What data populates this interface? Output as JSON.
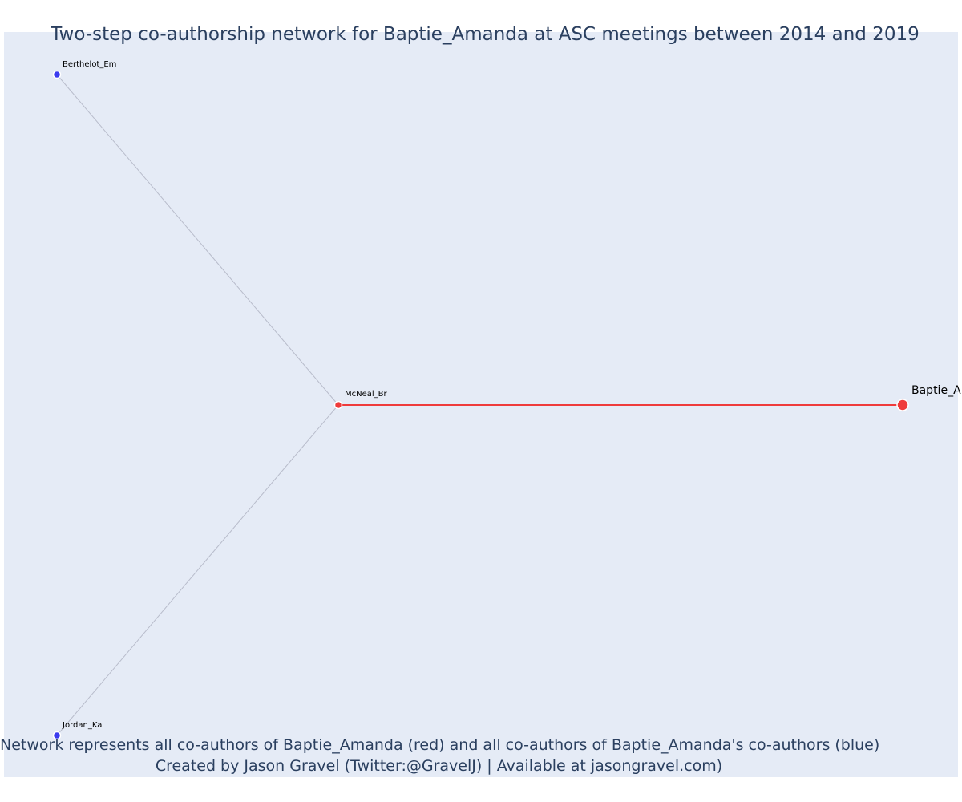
{
  "title": "Two-step co-authorship network for Baptie_Amanda at ASC meetings between 2014 and 2019",
  "caption": {
    "line1": "Network represents all co-authors of Baptie_Amanda (red) and all co-authors of Baptie_Amanda's co-authors (blue)",
    "line2": "Created by Jason Gravel (Twitter:@GravelJ) | Available at jasongravel.com)"
  },
  "colors": {
    "plot_background": "#e5ebf6",
    "title_text": "#2a3f5f",
    "coauthor_red": "#ef3b3b",
    "second_step_blue": "#3b3bef",
    "edge_red": "#ef3b3b",
    "edge_gray": "#b8bccb"
  },
  "network": {
    "nodes": [
      {
        "id": "Baptie_A",
        "label": "Baptie_A",
        "group": "focal"
      },
      {
        "id": "McNeal_Br",
        "label": "McNeal_Br",
        "group": "coauthor"
      },
      {
        "id": "Berthelot_Em",
        "label": "Berthelot_Em",
        "group": "second-step"
      },
      {
        "id": "Jordan_Ka",
        "label": "Jordan_Ka",
        "group": "second-step"
      }
    ],
    "edges": [
      {
        "source": "McNeal_Br",
        "target": "Baptie_A",
        "type": "direct"
      },
      {
        "source": "McNeal_Br",
        "target": "Berthelot_Em",
        "type": "indirect"
      },
      {
        "source": "McNeal_Br",
        "target": "Jordan_Ka",
        "type": "indirect"
      }
    ]
  }
}
